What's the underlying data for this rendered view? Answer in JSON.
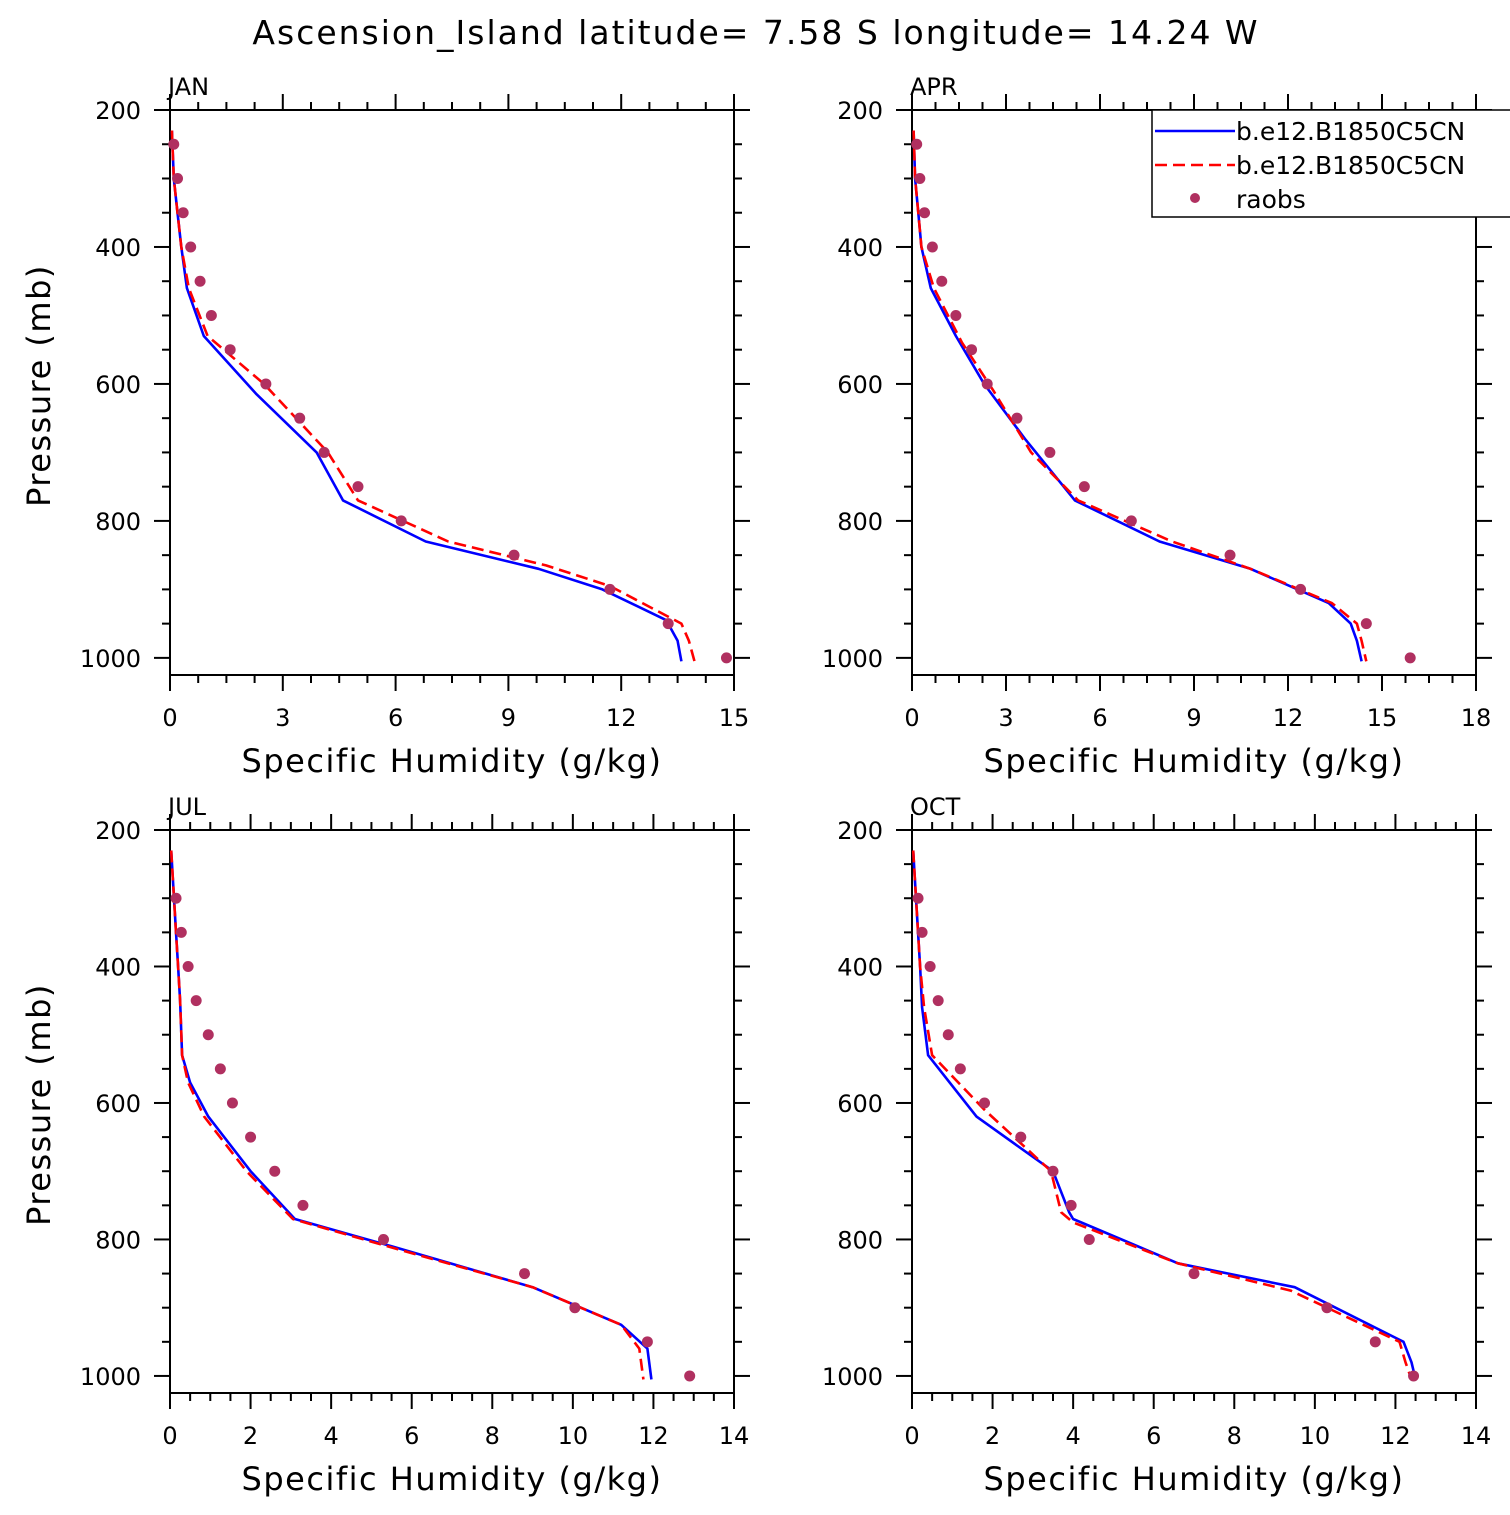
{
  "figure": {
    "title": "Ascension_Island  latitude= 7.58 S longitude= 14.24 W"
  },
  "legend": {
    "entries": [
      {
        "label": "b.e12.B1850C5CN",
        "color": "#0000ff",
        "style": "solid"
      },
      {
        "label": "b.e12.B1850C5CN",
        "color": "#ff0000",
        "style": "dashed"
      },
      {
        "label": "raobs",
        "color": "#b03060",
        "style": "marker"
      }
    ]
  },
  "chart_data": [
    {
      "type": "line",
      "title": "JAN",
      "xlabel": "Specific Humidity (g/kg)",
      "ylabel": "Pressure (mb)",
      "xlim": [
        0,
        15
      ],
      "ylim": [
        200,
        1025
      ],
      "y_inverted": true,
      "xticks": [
        0,
        3,
        6,
        9,
        12,
        15
      ],
      "yticks": [
        200,
        400,
        600,
        800,
        1000
      ],
      "series": [
        {
          "name": "b.e12.B1850C5CN",
          "color": "#0000ff",
          "style": "solid",
          "x": [
            0.05,
            0.1,
            0.2,
            0.3,
            0.45,
            0.9,
            2.3,
            3.9,
            4.6,
            6.8,
            9.8,
            11.5,
            13.2,
            13.5,
            13.6
          ],
          "y": [
            230,
            300,
            350,
            400,
            460,
            530,
            615,
            700,
            770,
            830,
            870,
            900,
            945,
            975,
            1005
          ]
        },
        {
          "name": "b.e12.B1850C5CN",
          "color": "#ff0000",
          "style": "dashed",
          "x": [
            0.05,
            0.1,
            0.2,
            0.3,
            0.5,
            1.0,
            2.5,
            4.2,
            5.0,
            7.4,
            10.0,
            11.7,
            13.6,
            13.8,
            13.95
          ],
          "y": [
            230,
            300,
            350,
            400,
            460,
            530,
            600,
            700,
            770,
            830,
            865,
            895,
            950,
            975,
            1005
          ]
        },
        {
          "name": "raobs",
          "color": "#b03060",
          "style": "marker",
          "x": [
            0.1,
            0.2,
            0.35,
            0.55,
            0.8,
            1.1,
            1.6,
            2.55,
            3.45,
            4.1,
            5.0,
            6.15,
            9.15,
            11.7,
            13.25,
            14.8
          ],
          "y": [
            250,
            300,
            350,
            400,
            450,
            500,
            550,
            600,
            650,
            700,
            750,
            800,
            850,
            900,
            950,
            1000
          ]
        }
      ]
    },
    {
      "type": "line",
      "title": "APR",
      "xlabel": "Specific Humidity (g/kg)",
      "ylabel": "",
      "xlim": [
        0,
        18
      ],
      "ylim": [
        200,
        1025
      ],
      "y_inverted": true,
      "xticks": [
        0,
        3,
        6,
        9,
        12,
        15,
        18
      ],
      "yticks": [
        200,
        400,
        600,
        800,
        1000
      ],
      "series": [
        {
          "name": "b.e12.B1850C5CN",
          "color": "#0000ff",
          "style": "solid",
          "x": [
            0.05,
            0.1,
            0.2,
            0.3,
            0.6,
            1.4,
            2.3,
            3.6,
            5.2,
            7.9,
            10.8,
            13.3,
            14.0,
            14.2,
            14.35
          ],
          "y": [
            230,
            300,
            350,
            400,
            460,
            530,
            600,
            680,
            770,
            830,
            870,
            920,
            950,
            975,
            1005
          ]
        },
        {
          "name": "b.e12.B1850C5CN",
          "color": "#ff0000",
          "style": "dashed",
          "x": [
            0.05,
            0.1,
            0.2,
            0.3,
            0.7,
            1.6,
            2.6,
            3.8,
            5.3,
            8.3,
            10.8,
            13.4,
            14.2,
            14.35,
            14.5
          ],
          "y": [
            230,
            300,
            350,
            400,
            460,
            540,
            610,
            700,
            770,
            830,
            870,
            920,
            950,
            975,
            1005
          ]
        },
        {
          "name": "raobs",
          "color": "#b03060",
          "style": "marker",
          "x": [
            0.15,
            0.25,
            0.4,
            0.65,
            0.95,
            1.4,
            1.9,
            2.4,
            3.35,
            4.4,
            5.5,
            7.0,
            10.15,
            12.4,
            14.5,
            15.9
          ],
          "y": [
            250,
            300,
            350,
            400,
            450,
            500,
            550,
            600,
            650,
            700,
            750,
            800,
            850,
            900,
            950,
            1000
          ]
        }
      ]
    },
    {
      "type": "line",
      "title": "JUL",
      "xlabel": "Specific Humidity (g/kg)",
      "ylabel": "Pressure (mb)",
      "xlim": [
        0,
        14
      ],
      "ylim": [
        200,
        1025
      ],
      "y_inverted": true,
      "xticks": [
        0,
        2,
        4,
        6,
        8,
        10,
        12,
        14
      ],
      "yticks": [
        200,
        400,
        600,
        800,
        1000
      ],
      "series": [
        {
          "name": "b.e12.B1850C5CN",
          "color": "#0000ff",
          "style": "solid",
          "x": [
            0.03,
            0.1,
            0.15,
            0.2,
            0.25,
            0.3,
            0.5,
            0.95,
            2.0,
            3.1,
            5.5,
            9.0,
            11.2,
            11.85,
            11.95
          ],
          "y": [
            230,
            300,
            350,
            400,
            450,
            530,
            570,
            620,
            700,
            770,
            810,
            870,
            925,
            960,
            1005
          ]
        },
        {
          "name": "b.e12.B1850C5CN",
          "color": "#ff0000",
          "style": "dashed",
          "x": [
            0.03,
            0.1,
            0.15,
            0.2,
            0.25,
            0.3,
            0.45,
            0.85,
            1.9,
            3.05,
            5.4,
            9.0,
            11.2,
            11.65,
            11.75
          ],
          "y": [
            230,
            300,
            350,
            400,
            450,
            530,
            570,
            620,
            700,
            770,
            810,
            870,
            925,
            960,
            1005
          ]
        },
        {
          "name": "raobs",
          "color": "#b03060",
          "style": "marker",
          "x": [
            0.15,
            0.28,
            0.45,
            0.65,
            0.95,
            1.25,
            1.55,
            2.0,
            2.6,
            3.3,
            5.3,
            8.8,
            10.05,
            11.85,
            12.9
          ],
          "y": [
            300,
            350,
            400,
            450,
            500,
            550,
            600,
            650,
            700,
            750,
            800,
            850,
            900,
            950,
            1000
          ]
        }
      ]
    },
    {
      "type": "line",
      "title": "OCT",
      "xlabel": "Specific Humidity (g/kg)",
      "ylabel": "",
      "xlim": [
        0,
        14
      ],
      "ylim": [
        200,
        1025
      ],
      "y_inverted": true,
      "xticks": [
        0,
        2,
        4,
        6,
        8,
        10,
        12,
        14
      ],
      "yticks": [
        200,
        400,
        600,
        800,
        1000
      ],
      "series": [
        {
          "name": "b.e12.B1850C5CN",
          "color": "#0000ff",
          "style": "solid",
          "x": [
            0.03,
            0.1,
            0.2,
            0.25,
            0.4,
            1.6,
            3.5,
            3.9,
            4.0,
            6.6,
            9.5,
            12.2,
            12.4,
            12.5
          ],
          "y": [
            230,
            300,
            400,
            460,
            530,
            620,
            700,
            760,
            770,
            835,
            870,
            950,
            980,
            1005
          ]
        },
        {
          "name": "b.e12.B1850C5CN",
          "color": "#ff0000",
          "style": "dashed",
          "x": [
            0.03,
            0.1,
            0.2,
            0.3,
            0.5,
            1.8,
            3.45,
            3.7,
            4.0,
            6.6,
            9.4,
            12.1,
            12.25,
            12.4
          ],
          "y": [
            230,
            300,
            400,
            460,
            530,
            610,
            700,
            760,
            775,
            835,
            875,
            950,
            980,
            1005
          ]
        },
        {
          "name": "raobs",
          "color": "#b03060",
          "style": "marker",
          "x": [
            0.15,
            0.25,
            0.45,
            0.65,
            0.9,
            1.2,
            1.8,
            2.7,
            3.5,
            3.95,
            4.4,
            7.0,
            10.3,
            11.5,
            12.45
          ],
          "y": [
            300,
            350,
            400,
            450,
            500,
            550,
            600,
            650,
            700,
            750,
            800,
            850,
            900,
            950,
            1000
          ]
        }
      ]
    }
  ]
}
